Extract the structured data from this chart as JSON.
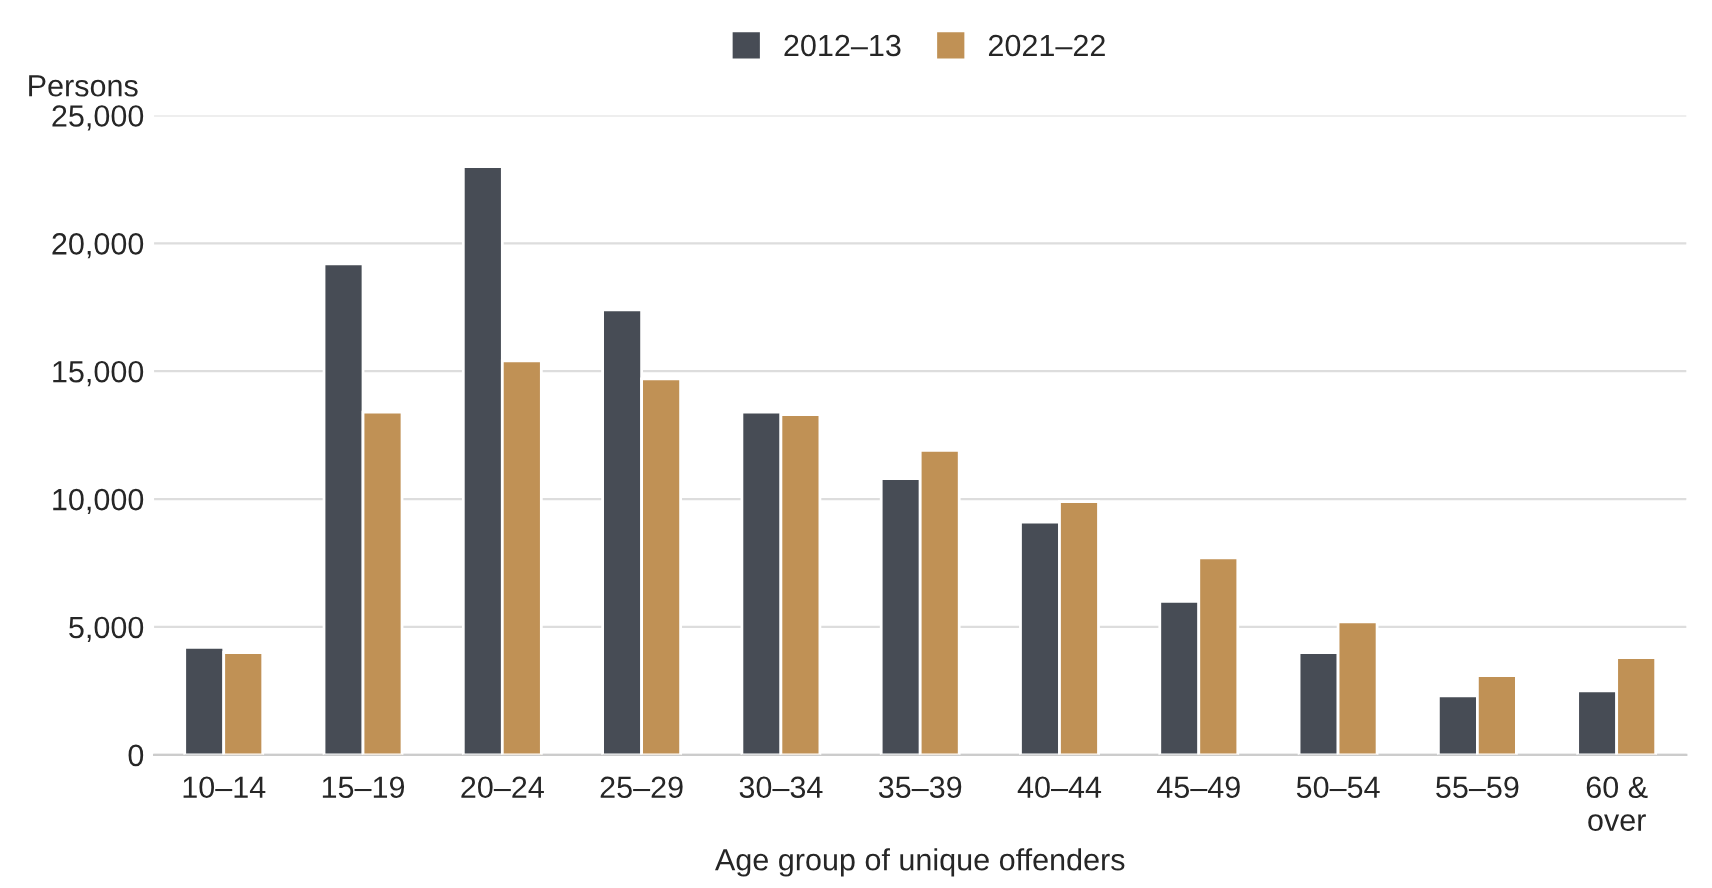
{
  "chart_data": {
    "type": "bar",
    "categories": [
      "10–14",
      "15–19",
      "20–24",
      "25–29",
      "30–34",
      "35–39",
      "40–44",
      "45–49",
      "50–54",
      "55–59",
      "60 &\nover"
    ],
    "series": [
      {
        "name": "2012–13",
        "color": "#474c55",
        "values": [
          4200,
          19200,
          23000,
          17400,
          13400,
          10800,
          9100,
          6000,
          4000,
          2300,
          2500
        ]
      },
      {
        "name": "2021–22",
        "color": "#c09155",
        "values": [
          4000,
          13400,
          15400,
          14700,
          13300,
          11900,
          9900,
          7700,
          5200,
          3100,
          3800
        ]
      }
    ],
    "xlabel": "Age group of unique offenders",
    "ylabel": "Persons",
    "ylim": [
      0,
      25000
    ],
    "yticks": [
      {
        "value": 0,
        "label": "0"
      },
      {
        "value": 5000,
        "label": "5,000"
      },
      {
        "value": 10000,
        "label": "10,000"
      },
      {
        "value": 15000,
        "label": "15,000"
      },
      {
        "value": 20000,
        "label": "20,000"
      },
      {
        "value": 25000,
        "label": "25,000"
      }
    ],
    "grid": "y",
    "legend": "top"
  }
}
